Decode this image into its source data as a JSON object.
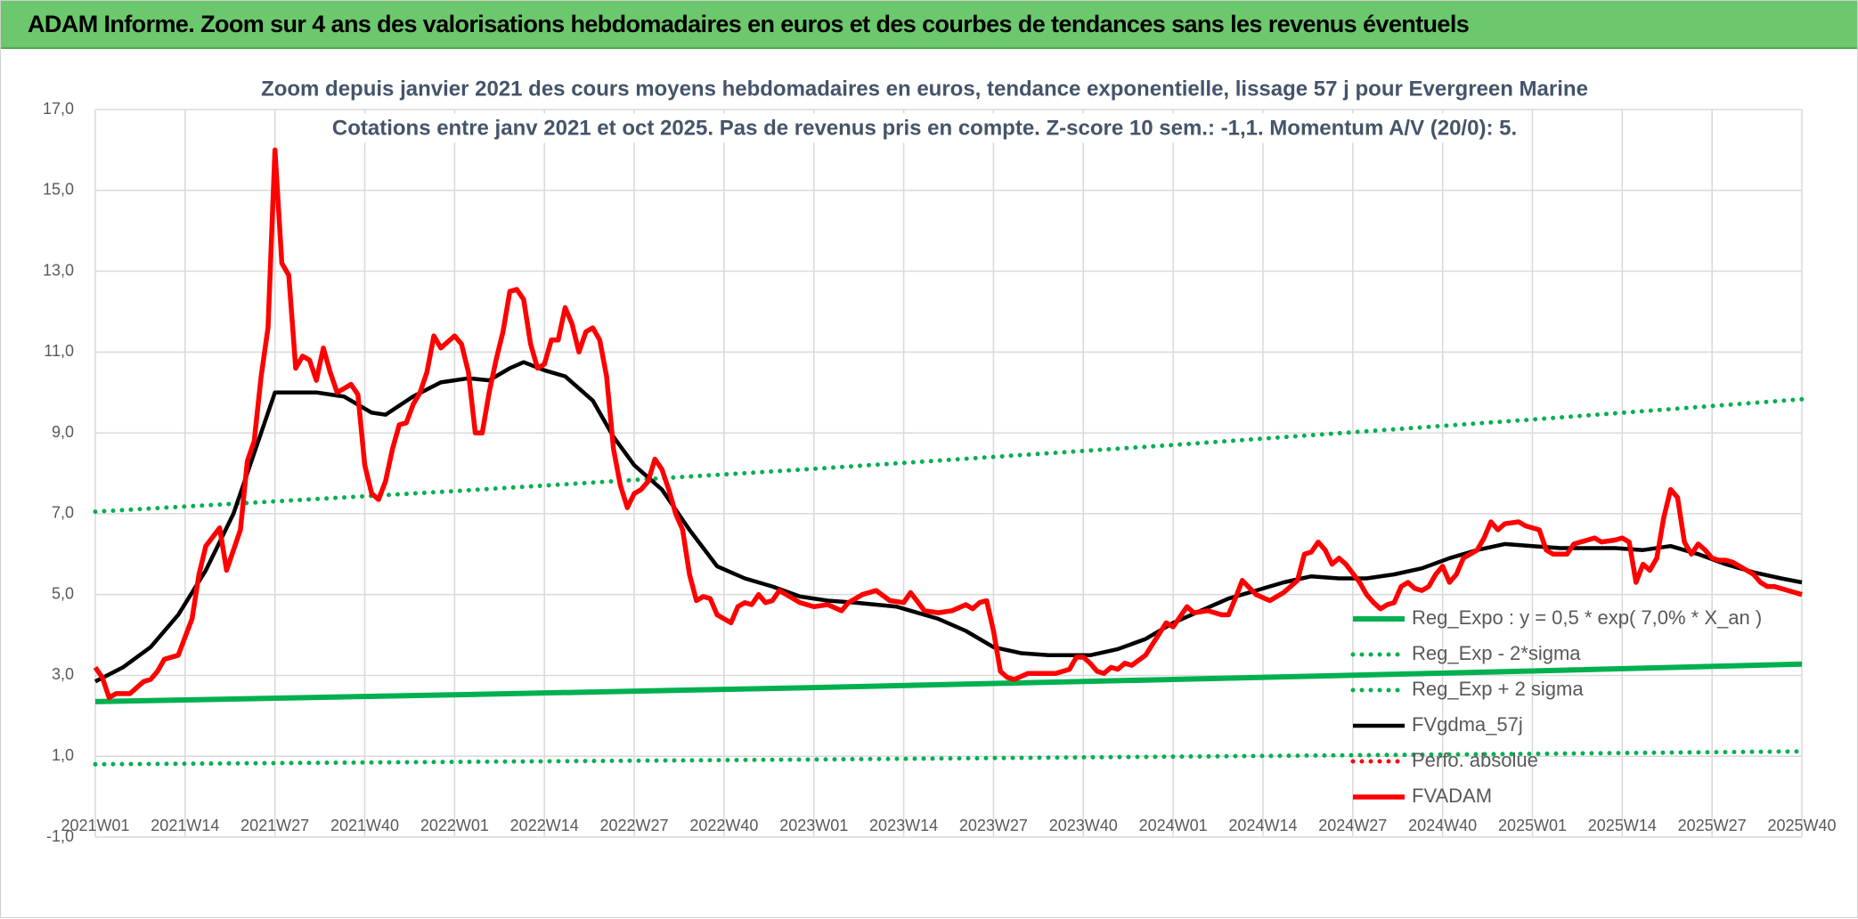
{
  "header": {
    "title": "ADAM Informe. Zoom sur 4 ans des valorisations hebdomadaires en euros et des courbes de tendances sans les revenus éventuels"
  },
  "chart_data": {
    "type": "line",
    "title": "Zoom depuis janvier 2021 des cours moyens hebdomadaires en euros, tendance exponentielle, lissage 57 j pour Evergreen Marine",
    "subtitle": "Cotations entre janv 2021 et oct 2025. Pas de revenus pris en compte. Z-score 10 sem.: -1,1. Momentum A/V (20/0): 5.",
    "xlim": [
      0,
      247
    ],
    "xticks": [
      {
        "value": 0,
        "label": "2021W01"
      },
      {
        "value": 13,
        "label": "2021W14"
      },
      {
        "value": 26,
        "label": "2021W27"
      },
      {
        "value": 39,
        "label": "2021W40"
      },
      {
        "value": 52,
        "label": "2022W01"
      },
      {
        "value": 65,
        "label": "2022W14"
      },
      {
        "value": 78,
        "label": "2022W27"
      },
      {
        "value": 91,
        "label": "2022W40"
      },
      {
        "value": 104,
        "label": "2023W01"
      },
      {
        "value": 117,
        "label": "2023W14"
      },
      {
        "value": 130,
        "label": "2023W27"
      },
      {
        "value": 143,
        "label": "2023W40"
      },
      {
        "value": 156,
        "label": "2024W01"
      },
      {
        "value": 169,
        "label": "2024W14"
      },
      {
        "value": 182,
        "label": "2024W27"
      },
      {
        "value": 195,
        "label": "2024W40"
      },
      {
        "value": 208,
        "label": "2025W01"
      },
      {
        "value": 221,
        "label": "2025W14"
      },
      {
        "value": 234,
        "label": "2025W27"
      },
      {
        "value": 247,
        "label": "2025W40"
      }
    ],
    "ylim": [
      -1,
      17
    ],
    "yticks": [
      {
        "value": -1,
        "label": "-1,0"
      },
      {
        "value": 1,
        "label": "1,0"
      },
      {
        "value": 3,
        "label": "3,0"
      },
      {
        "value": 5,
        "label": "5,0"
      },
      {
        "value": 7,
        "label": "7,0"
      },
      {
        "value": 9,
        "label": "9,0"
      },
      {
        "value": 11,
        "label": "11,0"
      },
      {
        "value": 13,
        "label": "13,0"
      },
      {
        "value": 15,
        "label": "15,0"
      },
      {
        "value": 17,
        "label": "17,0"
      }
    ],
    "grid": true,
    "legend": "lower right",
    "series": [
      {
        "name": "Reg_Expo : y = 0,5 * exp( 7,0% *  X_an )",
        "color": "#00b050",
        "style": "solid",
        "x": [
          0,
          52,
          104,
          156,
          208,
          247
        ],
        "values": [
          2.35,
          2.52,
          2.7,
          2.9,
          3.11,
          3.28
        ]
      },
      {
        "name": "Reg_Exp - 2*sigma",
        "color": "#00b050",
        "style": "dotted",
        "x": [
          0,
          52,
          104,
          156,
          208,
          247
        ],
        "values": [
          0.8,
          0.86,
          0.92,
          0.99,
          1.06,
          1.12
        ]
      },
      {
        "name": "Reg_Exp + 2 sigma",
        "color": "#00b050",
        "style": "dotted",
        "x": [
          0,
          52,
          104,
          156,
          208,
          247
        ],
        "values": [
          7.05,
          7.56,
          8.11,
          8.7,
          9.33,
          9.83
        ]
      },
      {
        "name": "FVgdma_57j",
        "color": "#000000",
        "style": "solid",
        "x": [
          0,
          4,
          8,
          12,
          16,
          20,
          23,
          26,
          28,
          32,
          36,
          40,
          42,
          46,
          50,
          54,
          57,
          60,
          62,
          65,
          68,
          72,
          75,
          78,
          82,
          86,
          90,
          94,
          98,
          102,
          106,
          110,
          116,
          122,
          126,
          130,
          134,
          138,
          144,
          148,
          152,
          156,
          160,
          164,
          168,
          172,
          176,
          180,
          184,
          188,
          192,
          196,
          200,
          204,
          208,
          212,
          216,
          220,
          224,
          228,
          232,
          236,
          240,
          244,
          247
        ],
        "values": [
          2.85,
          3.2,
          3.7,
          4.5,
          5.6,
          7.0,
          8.5,
          10.0,
          10.0,
          10.0,
          9.9,
          9.5,
          9.45,
          9.9,
          10.25,
          10.35,
          10.3,
          10.6,
          10.75,
          10.55,
          10.4,
          9.8,
          8.9,
          8.2,
          7.6,
          6.6,
          5.7,
          5.4,
          5.2,
          4.95,
          4.85,
          4.8,
          4.7,
          4.4,
          4.1,
          3.7,
          3.55,
          3.5,
          3.5,
          3.65,
          3.9,
          4.3,
          4.6,
          4.9,
          5.1,
          5.3,
          5.45,
          5.4,
          5.4,
          5.5,
          5.65,
          5.9,
          6.1,
          6.25,
          6.2,
          6.15,
          6.15,
          6.15,
          6.1,
          6.2,
          6.0,
          5.75,
          5.55,
          5.4,
          5.3
        ]
      },
      {
        "name": "Perfo. absolue",
        "color": "#ff0000",
        "style": "dotted",
        "x": [],
        "values": []
      },
      {
        "name": "FVADAM",
        "color": "#ff0000",
        "style": "solid",
        "x": [
          0,
          1,
          2,
          3,
          5,
          7,
          8,
          9,
          10,
          12,
          14,
          15,
          16,
          18,
          19,
          21,
          22,
          23,
          24,
          25,
          26,
          27,
          28,
          29,
          30,
          31,
          32,
          33,
          34,
          35,
          36,
          37,
          38,
          39,
          40,
          41,
          42,
          43,
          44,
          45,
          46,
          47,
          48,
          49,
          50,
          51,
          52,
          53,
          54,
          55,
          56,
          57,
          58,
          59,
          60,
          61,
          62,
          63,
          64,
          65,
          66,
          67,
          68,
          69,
          70,
          71,
          72,
          73,
          74,
          75,
          76,
          77,
          78,
          79,
          80,
          81,
          82,
          83,
          84,
          85,
          86,
          87,
          88,
          89,
          90,
          91,
          92,
          93,
          94,
          95,
          96,
          97,
          98,
          99,
          100,
          102,
          104,
          106,
          108,
          109,
          111,
          113,
          115,
          117,
          118,
          120,
          122,
          124,
          126,
          127,
          128,
          129,
          130,
          131,
          132,
          133,
          135,
          137,
          139,
          141,
          142,
          143,
          144,
          145,
          146,
          147,
          148,
          149,
          150,
          152,
          155,
          156,
          158,
          159,
          161,
          163,
          164,
          165,
          166,
          168,
          170,
          172,
          173,
          174,
          175,
          176,
          177,
          178,
          179,
          180,
          181,
          183,
          184,
          185,
          186,
          187,
          188,
          189,
          190,
          191,
          192,
          193,
          194,
          195,
          196,
          197,
          198,
          200,
          201,
          202,
          203,
          204,
          206,
          207,
          209,
          210,
          211,
          213,
          214,
          216,
          217,
          218,
          220,
          221,
          222,
          223,
          224,
          225,
          226,
          227,
          228,
          229,
          230,
          231,
          232,
          233,
          234,
          235,
          236,
          237,
          238,
          239,
          240,
          241,
          242,
          243,
          244,
          246,
          247
        ],
        "values": [
          3.2,
          2.95,
          2.45,
          2.55,
          2.55,
          2.85,
          2.9,
          3.1,
          3.4,
          3.5,
          4.4,
          5.5,
          6.2,
          6.65,
          5.6,
          6.6,
          8.3,
          8.8,
          10.4,
          11.6,
          16.0,
          13.2,
          12.9,
          10.6,
          10.9,
          10.8,
          10.3,
          11.1,
          10.5,
          10.0,
          10.1,
          10.2,
          9.95,
          8.2,
          7.5,
          7.35,
          7.8,
          8.6,
          9.2,
          9.25,
          9.7,
          10.0,
          10.5,
          11.4,
          11.1,
          11.25,
          11.4,
          11.2,
          10.5,
          9.0,
          9.0,
          10.0,
          10.8,
          11.5,
          12.5,
          12.55,
          12.3,
          11.2,
          10.6,
          10.7,
          11.3,
          11.3,
          12.1,
          11.7,
          11.0,
          11.5,
          11.6,
          11.3,
          10.4,
          8.6,
          7.7,
          7.15,
          7.5,
          7.6,
          7.8,
          8.35,
          8.1,
          7.6,
          7.0,
          6.6,
          5.5,
          4.85,
          4.95,
          4.9,
          4.5,
          4.4,
          4.3,
          4.7,
          4.8,
          4.75,
          5.0,
          4.8,
          4.85,
          5.1,
          5.0,
          4.8,
          4.7,
          4.75,
          4.6,
          4.8,
          5.0,
          5.1,
          4.85,
          4.8,
          5.05,
          4.6,
          4.55,
          4.6,
          4.75,
          4.65,
          4.8,
          4.85,
          4.1,
          3.1,
          2.95,
          2.9,
          3.05,
          3.05,
          3.05,
          3.15,
          3.45,
          3.45,
          3.3,
          3.1,
          3.05,
          3.2,
          3.15,
          3.3,
          3.25,
          3.5,
          4.3,
          4.2,
          4.7,
          4.55,
          4.6,
          4.5,
          4.5,
          4.9,
          5.35,
          5.0,
          4.85,
          5.05,
          5.2,
          5.35,
          6.0,
          6.05,
          6.3,
          6.1,
          5.75,
          5.9,
          5.75,
          5.3,
          5.0,
          4.8,
          4.65,
          4.75,
          4.8,
          5.2,
          5.3,
          5.15,
          5.1,
          5.2,
          5.5,
          5.7,
          5.3,
          5.5,
          5.9,
          6.1,
          6.4,
          6.8,
          6.6,
          6.75,
          6.8,
          6.7,
          6.6,
          6.1,
          6.0,
          6.0,
          6.25,
          6.35,
          6.4,
          6.3,
          6.35,
          6.4,
          6.3,
          5.3,
          5.75,
          5.6,
          5.9,
          6.9,
          7.6,
          7.4,
          6.3,
          6.0,
          6.25,
          6.1,
          5.9,
          5.85,
          5.85,
          5.8,
          5.7,
          5.6,
          5.5,
          5.3,
          5.2,
          5.2,
          5.15,
          5.05,
          5.0
        ]
      }
    ]
  }
}
